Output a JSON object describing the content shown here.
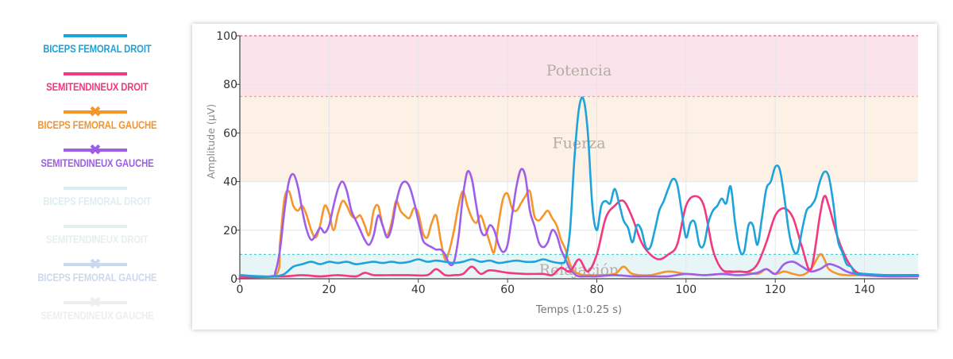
{
  "legend": {
    "items": [
      {
        "label": "BICEPS FEMORAL DROIT",
        "color": "#1ea3db",
        "marker": "none",
        "active": true
      },
      {
        "label": "SEMITENDINEUX DROIT",
        "color": "#f2387f",
        "marker": "none",
        "active": true
      },
      {
        "label": "BICEPS FEMORAL GAUCHE",
        "color": "#f6952c",
        "marker": "cross",
        "active": true
      },
      {
        "label": "SEMITENDINEUX GAUCHE",
        "color": "#9e5ee8",
        "marker": "cross",
        "active": true
      },
      {
        "label": "BICEPS FEMORAL DROIT",
        "color": "#7fc9d6",
        "marker": "none",
        "active": false
      },
      {
        "label": "SEMITENDINEUX DROIT",
        "color": "#a7c9c9",
        "marker": "none",
        "active": false
      },
      {
        "label": "BICEPS FEMORAL GAUCHE",
        "color": "#3f78c6",
        "marker": "cross",
        "active": false
      },
      {
        "label": "SEMITENDINEUX GAUCHE",
        "color": "#c3c3c3",
        "marker": "cross",
        "active": false
      }
    ]
  },
  "chart_data": {
    "type": "line",
    "title": "",
    "xlabel": "Temps (1:0.25 s)",
    "ylabel": "Amplitude (μV)",
    "xlim": [
      0,
      152
    ],
    "ylim": [
      0,
      100
    ],
    "xticks": [
      0,
      20,
      40,
      60,
      80,
      100,
      120,
      140
    ],
    "yticks": [
      0,
      20,
      40,
      60,
      80,
      100
    ],
    "grid": true,
    "bands": [
      {
        "label": "Potencia",
        "from": 75,
        "to": 100,
        "color": "#fbe3eb",
        "line_color": "#e8607e",
        "label_y": 86
      },
      {
        "label": "Fuerza",
        "from": 40,
        "to": 75,
        "color": "#fdf1e6",
        "line_color": "#f3a860",
        "label_y": 56
      },
      {
        "label": "Relajación",
        "from": 0,
        "to": 10,
        "color": "#e8f5f7",
        "line_color": "#5cc8c4",
        "label_y": 4
      }
    ],
    "series": [
      {
        "name": "BICEPS FEMORAL DROIT",
        "color": "#1ea3db",
        "x": [
          0,
          5,
          8,
          10,
          12,
          14,
          16,
          18,
          20,
          22,
          24,
          26,
          28,
          30,
          32,
          34,
          36,
          38,
          40,
          42,
          44,
          46,
          48,
          50,
          52,
          54,
          56,
          58,
          60,
          62,
          64,
          66,
          68,
          70,
          72,
          73,
          74,
          75,
          76,
          77,
          78,
          79,
          80,
          81,
          82,
          83,
          84,
          85,
          86,
          87,
          88,
          89,
          90,
          91,
          92,
          93,
          94,
          95,
          96,
          97,
          98,
          99,
          100,
          101,
          102,
          103,
          104,
          105,
          106,
          107,
          108,
          109,
          110,
          111,
          112,
          113,
          114,
          115,
          116,
          117,
          118,
          119,
          120,
          121,
          122,
          123,
          124,
          125,
          126,
          127,
          128,
          129,
          130,
          131,
          132,
          133,
          134,
          135,
          136,
          137,
          138,
          140,
          145,
          150,
          152
        ],
        "y": [
          1.5,
          1,
          1,
          2,
          5,
          6,
          7,
          6,
          7,
          6.5,
          7,
          6,
          6.5,
          7,
          6.5,
          7,
          6.5,
          7,
          8,
          7,
          7.5,
          7,
          6.5,
          7,
          8,
          7,
          7.5,
          6.5,
          7,
          7.5,
          7,
          7,
          8,
          7,
          6.5,
          8,
          20,
          50,
          70,
          74,
          60,
          30,
          20,
          30,
          32,
          31,
          37,
          31,
          24,
          21,
          15,
          22,
          20,
          13,
          13,
          20,
          28,
          32,
          37,
          41,
          39,
          28,
          17,
          23,
          23,
          14,
          14,
          23,
          28,
          30,
          33,
          31,
          38,
          23,
          12,
          11,
          22,
          22,
          14,
          25,
          37,
          40,
          46,
          45,
          34,
          20,
          12,
          11,
          20,
          28,
          30,
          33,
          40,
          44,
          42,
          31,
          16,
          11,
          6,
          5,
          2,
          2,
          1.5,
          1.5,
          1.5
        ]
      },
      {
        "name": "SEMITENDINEUX DROIT",
        "color": "#f2387f",
        "x": [
          0,
          10,
          14,
          18,
          22,
          26,
          28,
          30,
          34,
          38,
          42,
          44,
          46,
          48,
          50,
          52,
          54,
          56,
          60,
          64,
          68,
          70,
          72,
          74,
          76,
          78,
          80,
          82,
          84,
          86,
          88,
          90,
          92,
          94,
          96,
          98,
          100,
          102,
          104,
          106,
          108,
          110,
          112,
          114,
          116,
          118,
          120,
          122,
          124,
          126,
          128,
          130,
          131,
          132,
          134,
          136,
          138,
          140,
          145,
          152
        ],
        "y": [
          0.5,
          1,
          1.5,
          1,
          1.5,
          1,
          2.5,
          1.5,
          1.5,
          1.5,
          1.5,
          4,
          1.5,
          1.5,
          2,
          5,
          2,
          3.5,
          2.5,
          2,
          2,
          1.5,
          4.5,
          3,
          8,
          3,
          10,
          25,
          30,
          32,
          25,
          15,
          10,
          8,
          10,
          14,
          30,
          34,
          30,
          12,
          4,
          3,
          3,
          3,
          6,
          15,
          26,
          29,
          25,
          13,
          4,
          26,
          34,
          30,
          17,
          8,
          3,
          2,
          1.5,
          1.5
        ]
      },
      {
        "name": "BICEPS FEMORAL GAUCHE",
        "color": "#f6952c",
        "x": [
          0,
          8,
          9,
          10,
          11,
          12,
          13,
          14,
          15,
          16,
          17,
          18,
          19,
          20,
          21,
          22,
          23,
          24,
          25,
          26,
          27,
          28,
          29,
          30,
          31,
          32,
          33,
          34,
          35,
          36,
          37,
          38,
          39,
          40,
          41,
          42,
          43,
          44,
          45,
          46,
          47,
          48,
          49,
          50,
          51,
          52,
          53,
          54,
          55,
          56,
          57,
          58,
          59,
          60,
          61,
          62,
          63,
          64,
          65,
          66,
          67,
          68,
          69,
          70,
          71,
          72,
          73,
          74,
          75,
          76,
          77,
          78,
          80,
          84,
          86,
          88,
          92,
          96,
          100,
          104,
          108,
          112,
          116,
          118,
          120,
          122,
          124,
          126,
          128,
          130,
          131,
          132,
          134,
          136,
          138,
          140,
          145,
          152
        ],
        "y": [
          1.5,
          1.5,
          15,
          33,
          36,
          30,
          28,
          30,
          26,
          20,
          17,
          22,
          30,
          27,
          20,
          27,
          32,
          30,
          26,
          25,
          26,
          22,
          18,
          28,
          30,
          22,
          18,
          23,
          32,
          28,
          26,
          25,
          29,
          27,
          19,
          17,
          23,
          26,
          16,
          8,
          12,
          20,
          30,
          36,
          30,
          25,
          23,
          26,
          21,
          15,
          11,
          23,
          33,
          35,
          29,
          28,
          31,
          34,
          36,
          26,
          24,
          26,
          28,
          25,
          22,
          16,
          12,
          6,
          3,
          2,
          1.5,
          1.5,
          1.5,
          2,
          5,
          2,
          1.5,
          3,
          2,
          1.5,
          2,
          3,
          2,
          4,
          2,
          3,
          2,
          1.5,
          4,
          10,
          8,
          4,
          2,
          1.5,
          1.5,
          1.5,
          1.5,
          1.5
        ]
      },
      {
        "name": "SEMITENDINEUX GAUCHE",
        "color": "#9e5ee8",
        "x": [
          0,
          7,
          8,
          9,
          10,
          11,
          12,
          13,
          14,
          15,
          16,
          17,
          18,
          19,
          20,
          21,
          22,
          23,
          24,
          25,
          26,
          27,
          28,
          29,
          30,
          31,
          32,
          33,
          34,
          35,
          36,
          37,
          38,
          39,
          40,
          41,
          42,
          43,
          44,
          45,
          46,
          47,
          48,
          49,
          50,
          51,
          52,
          53,
          54,
          55,
          56,
          57,
          58,
          59,
          60,
          61,
          62,
          63,
          64,
          65,
          66,
          67,
          68,
          69,
          70,
          71,
          72,
          73,
          74,
          75,
          76,
          78,
          80,
          84,
          88,
          92,
          96,
          100,
          104,
          108,
          112,
          116,
          118,
          120,
          122,
          124,
          126,
          128,
          130,
          132,
          134,
          136,
          138,
          140,
          145,
          152
        ],
        "y": [
          1,
          1,
          3,
          12,
          28,
          40,
          43,
          38,
          28,
          20,
          16,
          18,
          21,
          19,
          22,
          30,
          37,
          40,
          36,
          28,
          24,
          20,
          16,
          14,
          18,
          26,
          22,
          17,
          21,
          31,
          38,
          40,
          38,
          32,
          24,
          16,
          14,
          13,
          12,
          12,
          10,
          6,
          7,
          17,
          34,
          44,
          41,
          30,
          20,
          18,
          22,
          20,
          14,
          11,
          14,
          26,
          38,
          45,
          42,
          28,
          22,
          15,
          13,
          15,
          20,
          18,
          12,
          8,
          4,
          2,
          1,
          1,
          1,
          1.5,
          1,
          1,
          1,
          2,
          1.5,
          2,
          1.5,
          2.5,
          4,
          2,
          6,
          7,
          5,
          3,
          4,
          6,
          5,
          3,
          2,
          1.5,
          1,
          1
        ]
      }
    ]
  }
}
